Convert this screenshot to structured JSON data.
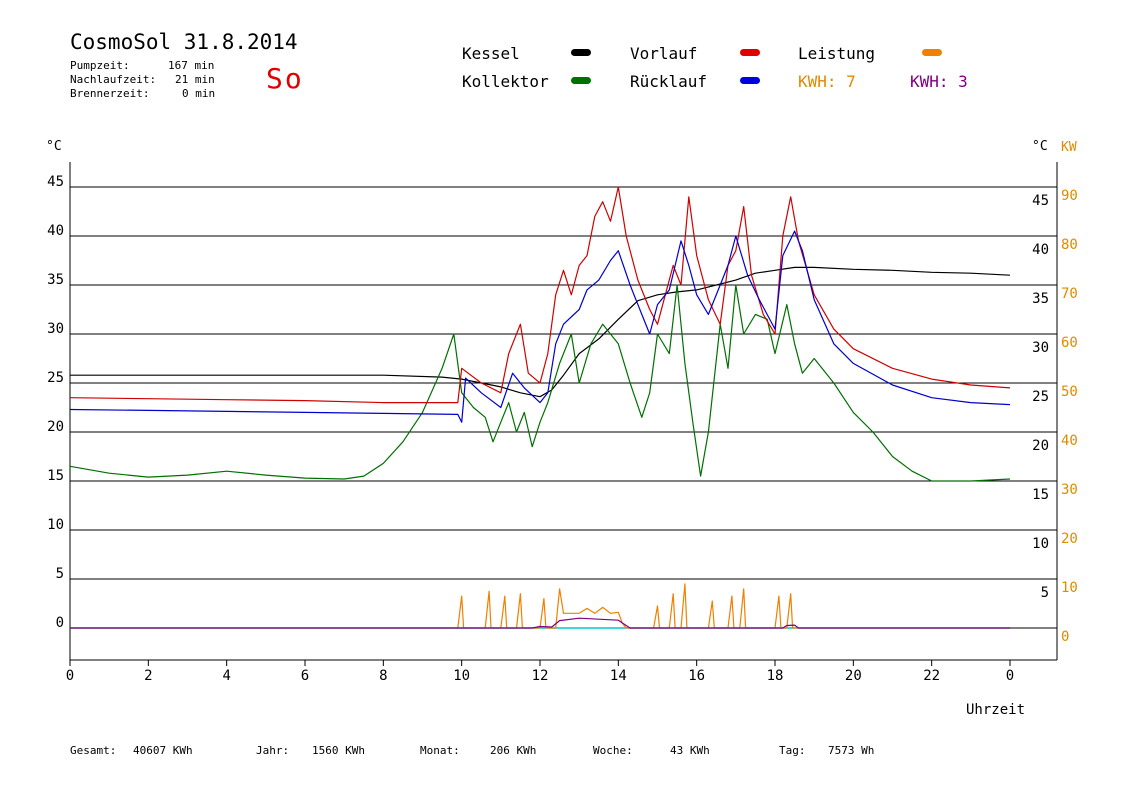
{
  "header": {
    "title": "CosmoSol 31.8.2014",
    "pumpzeit_label": "Pumpzeit:",
    "pumpzeit_value": "167 min",
    "nachlauf_label": "Nachlaufzeit:",
    "nachlauf_value": "21 min",
    "brenner_label": "Brennerzeit:",
    "brenner_value": "0 min",
    "day": "So"
  },
  "legend": {
    "kessel": "Kessel",
    "kollektor": "Kollektor",
    "vorlauf": "Vorlauf",
    "ruecklauf": "Rücklauf",
    "leistung": "Leistung",
    "kwh1": "KWH: 7",
    "kwh2": "KWH: 3"
  },
  "axes": {
    "left_unit": "°C",
    "right_unit": "°C",
    "kw_unit": "KW",
    "x_unit": "Uhrzeit"
  },
  "footer": {
    "gesamt_label": "Gesamt:",
    "gesamt_value": "40607 KWh",
    "jahr_label": "Jahr:",
    "jahr_value": "1560 KWh",
    "monat_label": "Monat:",
    "monat_value": "206 KWh",
    "woche_label": "Woche:",
    "woche_value": "43 KWh",
    "tag_label": "Tag:",
    "tag_value": "7573 Wh"
  },
  "colors": {
    "kessel": "#000000",
    "kollektor": "#007000",
    "vorlauf": "#d00000",
    "ruecklauf": "#0000d0",
    "leistung": "#f08000",
    "kwh2": "#800080",
    "baseline": "#00c8c8"
  },
  "chart_data": {
    "type": "line",
    "xlabel": "Uhrzeit",
    "ylabel": "°C",
    "y2label": "KW",
    "xlim": [
      0,
      24
    ],
    "ylim": [
      -3,
      48
    ],
    "y_ticks": [
      0,
      5,
      10,
      15,
      20,
      25,
      30,
      35,
      40,
      45
    ],
    "y_ticks_right": [
      5,
      10,
      15,
      20,
      25,
      30,
      35,
      40,
      45
    ],
    "kw_ticks": [
      0,
      10,
      20,
      30,
      40,
      50,
      60,
      70,
      80,
      90
    ],
    "x_ticks": [
      "0",
      "2",
      "4",
      "6",
      "8",
      "10",
      "12",
      "14",
      "16",
      "18",
      "20",
      "22",
      "0"
    ],
    "grid": true,
    "series": [
      {
        "name": "Kessel",
        "color": "#000000",
        "points": [
          [
            0,
            25.8
          ],
          [
            2,
            25.8
          ],
          [
            4,
            25.8
          ],
          [
            6,
            25.8
          ],
          [
            8,
            25.8
          ],
          [
            9.5,
            25.6
          ],
          [
            10,
            25.4
          ],
          [
            10.5,
            25.0
          ],
          [
            11,
            24.6
          ],
          [
            11.5,
            24.0
          ],
          [
            12,
            23.6
          ],
          [
            12.3,
            24.3
          ],
          [
            12.6,
            25.8
          ],
          [
            13,
            28.0
          ],
          [
            13.5,
            29.5
          ],
          [
            14,
            31.5
          ],
          [
            14.5,
            33.4
          ],
          [
            15,
            34.0
          ],
          [
            15.5,
            34.3
          ],
          [
            16,
            34.5
          ],
          [
            16.5,
            35.0
          ],
          [
            17,
            35.5
          ],
          [
            17.5,
            36.2
          ],
          [
            18,
            36.5
          ],
          [
            18.5,
            36.8
          ],
          [
            19,
            36.8
          ],
          [
            20,
            36.6
          ],
          [
            21,
            36.5
          ],
          [
            22,
            36.3
          ],
          [
            23,
            36.2
          ],
          [
            23.5,
            36.1
          ],
          [
            24,
            36.0
          ]
        ]
      },
      {
        "name": "Kollektor",
        "color": "#007000",
        "points": [
          [
            0,
            16.5
          ],
          [
            1,
            15.8
          ],
          [
            2,
            15.4
          ],
          [
            3,
            15.6
          ],
          [
            4,
            16.0
          ],
          [
            5,
            15.6
          ],
          [
            6,
            15.3
          ],
          [
            7,
            15.2
          ],
          [
            7.5,
            15.5
          ],
          [
            8,
            16.8
          ],
          [
            8.5,
            19.0
          ],
          [
            9,
            22.0
          ],
          [
            9.5,
            26.5
          ],
          [
            9.8,
            30.0
          ],
          [
            10,
            24.0
          ],
          [
            10.3,
            22.5
          ],
          [
            10.6,
            21.5
          ],
          [
            10.8,
            19.0
          ],
          [
            11,
            21.0
          ],
          [
            11.2,
            23.0
          ],
          [
            11.4,
            20.0
          ],
          [
            11.6,
            22.0
          ],
          [
            11.8,
            18.5
          ],
          [
            12,
            21.0
          ],
          [
            12.2,
            23.0
          ],
          [
            12.5,
            27.0
          ],
          [
            12.8,
            30.0
          ],
          [
            13,
            25.0
          ],
          [
            13.3,
            29.0
          ],
          [
            13.6,
            31.0
          ],
          [
            14,
            29.0
          ],
          [
            14.3,
            25.0
          ],
          [
            14.6,
            21.5
          ],
          [
            14.8,
            24.0
          ],
          [
            15,
            30.0
          ],
          [
            15.3,
            28.0
          ],
          [
            15.5,
            35.0
          ],
          [
            15.7,
            27.0
          ],
          [
            15.9,
            21.0
          ],
          [
            16.1,
            15.5
          ],
          [
            16.3,
            20.0
          ],
          [
            16.6,
            31.0
          ],
          [
            16.8,
            26.5
          ],
          [
            17,
            35.0
          ],
          [
            17.2,
            30.0
          ],
          [
            17.5,
            32.0
          ],
          [
            17.8,
            31.5
          ],
          [
            18,
            28.0
          ],
          [
            18.3,
            33.0
          ],
          [
            18.5,
            29.0
          ],
          [
            18.7,
            26.0
          ],
          [
            19,
            27.5
          ],
          [
            19.5,
            25.0
          ],
          [
            20,
            22.0
          ],
          [
            20.5,
            20.0
          ],
          [
            21,
            17.5
          ],
          [
            21.5,
            16.0
          ],
          [
            22,
            15.0
          ],
          [
            23,
            15.0
          ],
          [
            24,
            15.2
          ]
        ]
      },
      {
        "name": "Vorlauf",
        "color": "#d00000",
        "points": [
          [
            0,
            23.5
          ],
          [
            2,
            23.4
          ],
          [
            4,
            23.3
          ],
          [
            6,
            23.2
          ],
          [
            8,
            23.0
          ],
          [
            9.5,
            23.0
          ],
          [
            9.9,
            23.0
          ],
          [
            10,
            26.5
          ],
          [
            10.5,
            25.0
          ],
          [
            11,
            24.0
          ],
          [
            11.2,
            28.0
          ],
          [
            11.5,
            31.0
          ],
          [
            11.7,
            26.0
          ],
          [
            12,
            25.0
          ],
          [
            12.2,
            28.0
          ],
          [
            12.4,
            34.0
          ],
          [
            12.6,
            36.5
          ],
          [
            12.8,
            34.0
          ],
          [
            13,
            37.0
          ],
          [
            13.2,
            38.0
          ],
          [
            13.4,
            42.0
          ],
          [
            13.6,
            43.5
          ],
          [
            13.8,
            41.5
          ],
          [
            14,
            45.0
          ],
          [
            14.2,
            40.0
          ],
          [
            14.5,
            35.5
          ],
          [
            14.8,
            32.5
          ],
          [
            15,
            31.0
          ],
          [
            15.2,
            34.0
          ],
          [
            15.4,
            37.0
          ],
          [
            15.6,
            35.0
          ],
          [
            15.8,
            44.0
          ],
          [
            16,
            38.0
          ],
          [
            16.3,
            33.5
          ],
          [
            16.6,
            31.0
          ],
          [
            16.8,
            37.0
          ],
          [
            17,
            38.5
          ],
          [
            17.2,
            43.0
          ],
          [
            17.4,
            36.0
          ],
          [
            17.7,
            32.0
          ],
          [
            18,
            30.0
          ],
          [
            18.2,
            40.0
          ],
          [
            18.4,
            44.0
          ],
          [
            18.6,
            39.5
          ],
          [
            19,
            34.0
          ],
          [
            19.5,
            30.5
          ],
          [
            20,
            28.5
          ],
          [
            21,
            26.5
          ],
          [
            22,
            25.4
          ],
          [
            23,
            24.8
          ],
          [
            24,
            24.5
          ]
        ]
      },
      {
        "name": "Rücklauf",
        "color": "#0000d0",
        "points": [
          [
            0,
            22.3
          ],
          [
            2,
            22.2
          ],
          [
            4,
            22.1
          ],
          [
            6,
            22.0
          ],
          [
            8,
            21.9
          ],
          [
            9.9,
            21.8
          ],
          [
            10,
            21.0
          ],
          [
            10.1,
            25.5
          ],
          [
            10.5,
            24.0
          ],
          [
            11,
            22.5
          ],
          [
            11.3,
            26.0
          ],
          [
            11.6,
            24.5
          ],
          [
            12,
            23.0
          ],
          [
            12.2,
            24.0
          ],
          [
            12.4,
            29.0
          ],
          [
            12.6,
            31.0
          ],
          [
            13,
            32.5
          ],
          [
            13.2,
            34.5
          ],
          [
            13.5,
            35.5
          ],
          [
            13.8,
            37.5
          ],
          [
            14,
            38.5
          ],
          [
            14.3,
            35.0
          ],
          [
            14.6,
            32.0
          ],
          [
            14.8,
            30.0
          ],
          [
            15,
            33.0
          ],
          [
            15.3,
            34.5
          ],
          [
            15.6,
            39.5
          ],
          [
            15.8,
            37.0
          ],
          [
            16,
            34.0
          ],
          [
            16.3,
            32.0
          ],
          [
            16.6,
            35.0
          ],
          [
            16.8,
            37.0
          ],
          [
            17,
            40.0
          ],
          [
            17.3,
            36.0
          ],
          [
            17.6,
            33.5
          ],
          [
            18,
            30.5
          ],
          [
            18.2,
            38.0
          ],
          [
            18.5,
            40.5
          ],
          [
            18.7,
            38.5
          ],
          [
            19,
            33.5
          ],
          [
            19.5,
            29.0
          ],
          [
            20,
            27.0
          ],
          [
            21,
            24.8
          ],
          [
            22,
            23.5
          ],
          [
            23,
            23.0
          ],
          [
            24,
            22.8
          ]
        ]
      },
      {
        "name": "Leistung",
        "color": "#f08000",
        "kw": true,
        "points": [
          [
            0,
            0
          ],
          [
            9.9,
            0
          ],
          [
            10,
            6.5
          ],
          [
            10.05,
            0
          ],
          [
            10.6,
            0
          ],
          [
            10.7,
            7.5
          ],
          [
            10.75,
            0
          ],
          [
            11.0,
            0
          ],
          [
            11.1,
            6.5
          ],
          [
            11.15,
            0
          ],
          [
            11.4,
            0
          ],
          [
            11.5,
            7.0
          ],
          [
            11.55,
            0
          ],
          [
            12.0,
            0
          ],
          [
            12.1,
            6.0
          ],
          [
            12.15,
            0
          ],
          [
            12.4,
            0
          ],
          [
            12.5,
            8.0
          ],
          [
            12.6,
            3.0
          ],
          [
            13,
            3.0
          ],
          [
            13.2,
            4.0
          ],
          [
            13.4,
            3.0
          ],
          [
            13.6,
            4.2
          ],
          [
            13.8,
            3.0
          ],
          [
            14,
            3.2
          ],
          [
            14.1,
            1.0
          ],
          [
            14.2,
            0
          ],
          [
            14.9,
            0
          ],
          [
            15,
            4.5
          ],
          [
            15.05,
            0
          ],
          [
            15.3,
            0
          ],
          [
            15.4,
            7.0
          ],
          [
            15.45,
            0
          ],
          [
            15.6,
            0
          ],
          [
            15.7,
            9.0
          ],
          [
            15.75,
            0
          ],
          [
            16.3,
            0
          ],
          [
            16.4,
            5.5
          ],
          [
            16.45,
            0
          ],
          [
            16.8,
            0
          ],
          [
            16.9,
            6.5
          ],
          [
            16.95,
            0
          ],
          [
            17.1,
            0
          ],
          [
            17.2,
            8.0
          ],
          [
            17.25,
            0
          ],
          [
            18.0,
            0
          ],
          [
            18.1,
            6.5
          ],
          [
            18.15,
            0
          ],
          [
            18.3,
            0
          ],
          [
            18.4,
            7.0
          ],
          [
            18.45,
            0
          ],
          [
            24,
            0
          ]
        ]
      },
      {
        "name": "KWH: 3",
        "color": "#800080",
        "kw": true,
        "points": [
          [
            0,
            0
          ],
          [
            11.8,
            0
          ],
          [
            12,
            0.3
          ],
          [
            12.3,
            0.2
          ],
          [
            12.5,
            1.5
          ],
          [
            13,
            2.0
          ],
          [
            13.5,
            1.8
          ],
          [
            14,
            1.6
          ],
          [
            14.2,
            0.5
          ],
          [
            14.3,
            0
          ],
          [
            18.2,
            0
          ],
          [
            18.3,
            0.5
          ],
          [
            18.5,
            0.6
          ],
          [
            18.6,
            0
          ],
          [
            24,
            0
          ]
        ]
      }
    ]
  }
}
